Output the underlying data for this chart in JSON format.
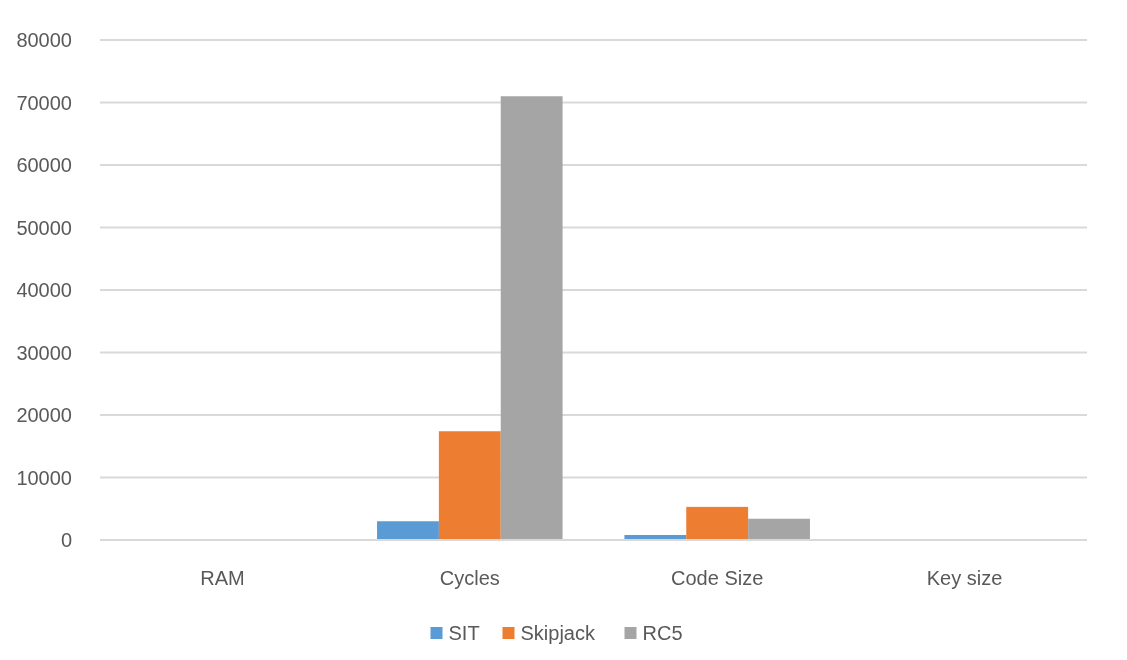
{
  "chart_data": {
    "type": "bar",
    "categories": [
      "RAM",
      "Cycles",
      "Code Size",
      "Key size"
    ],
    "series": [
      {
        "name": "SIT",
        "color": "#5b9bd5",
        "values": [
          0,
          3000,
          800,
          0
        ]
      },
      {
        "name": "Skipjack",
        "color": "#ed7d31",
        "values": [
          0,
          17400,
          5300,
          0
        ]
      },
      {
        "name": "RC5",
        "color": "#a5a5a5",
        "values": [
          0,
          71000,
          3400,
          0
        ]
      }
    ],
    "ylim": [
      0,
      80000
    ],
    "yticks": [
      0,
      10000,
      20000,
      30000,
      40000,
      50000,
      60000,
      70000,
      80000
    ],
    "grid": "y",
    "legend": "bottom"
  }
}
